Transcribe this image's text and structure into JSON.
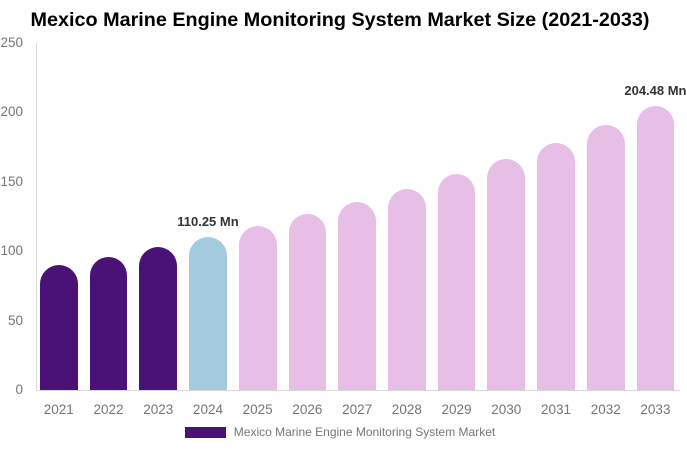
{
  "title": "Mexico Marine Engine Monitoring System Market Size (2021-2033)",
  "chart_data": {
    "type": "bar",
    "categories": [
      "2021",
      "2022",
      "2023",
      "2024",
      "2025",
      "2026",
      "2027",
      "2028",
      "2029",
      "2030",
      "2031",
      "2032",
      "2033"
    ],
    "values": [
      89.7,
      96.1,
      102.9,
      110.25,
      118.1,
      126.5,
      135.5,
      145.1,
      155.4,
      166.4,
      178.3,
      190.9,
      204.48
    ],
    "unit": "Mn",
    "title": "Mexico Marine Engine Monitoring System Market Size (2021-2033)",
    "xlabel": "",
    "ylabel": "",
    "ylim": [
      0,
      250
    ],
    "yticks": [
      0,
      50,
      100,
      150,
      200,
      250
    ],
    "grid": false,
    "legend_position": "bottom",
    "bar_roles": [
      "historical",
      "historical",
      "historical",
      "current",
      "forecast",
      "forecast",
      "forecast",
      "forecast",
      "forecast",
      "forecast",
      "forecast",
      "forecast",
      "forecast"
    ],
    "role_colors": {
      "historical": "#4A1277",
      "current": "#A5CBDF",
      "forecast": "#E6BEE6"
    },
    "annotations": [
      {
        "category": "2024",
        "text": "110.25 Mn"
      },
      {
        "category": "2033",
        "text": "204.48 Mn"
      }
    ],
    "legend": [
      {
        "label": "Mexico Marine Engine Monitoring System Market",
        "color": "#4A1277"
      }
    ]
  }
}
